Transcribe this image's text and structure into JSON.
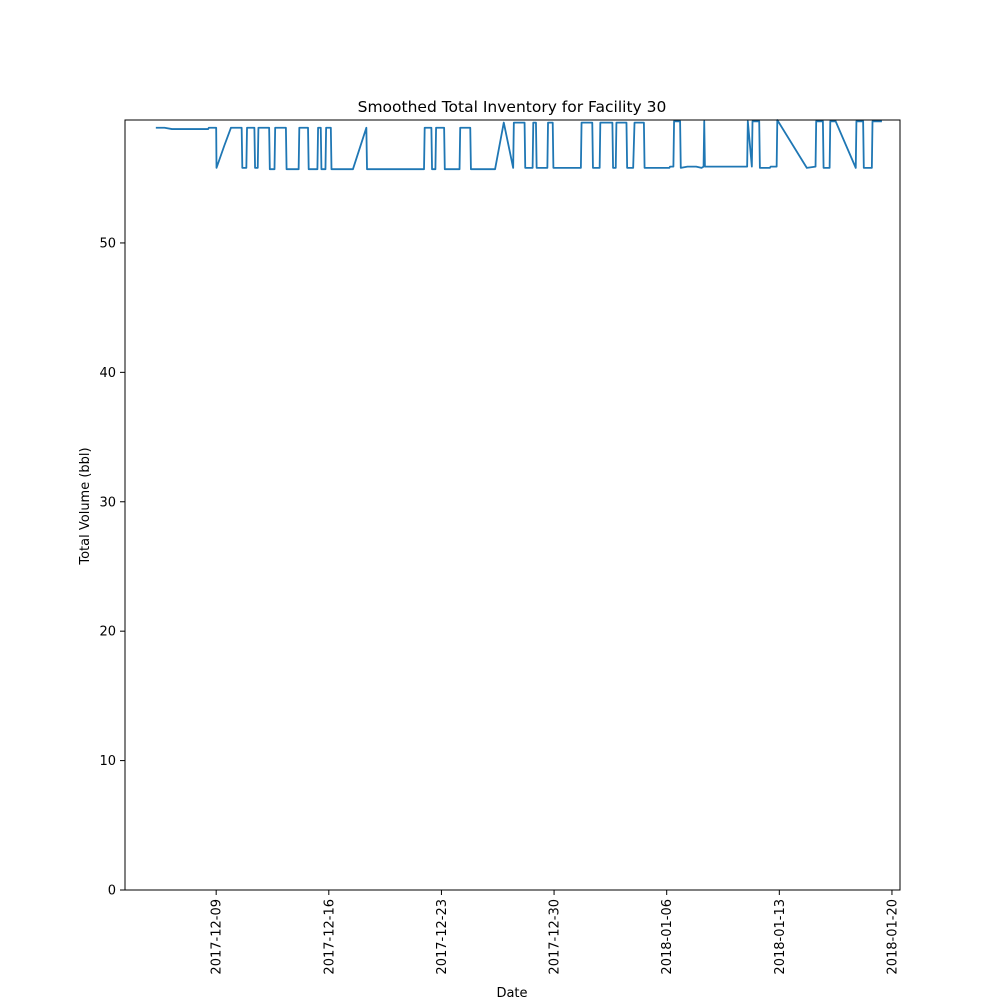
{
  "chart_data": {
    "type": "line",
    "title": "Smoothed Total Inventory for Facility 30",
    "xlabel": "Date",
    "ylabel": "Total Volume (bbl)",
    "x_axis": "date",
    "xlim": [
      "2017-12-03T08:00",
      "2018-01-20T12:00"
    ],
    "ylim": [
      0,
      59.5
    ],
    "x_ticks": [
      "2017-12-09",
      "2017-12-16",
      "2017-12-23",
      "2017-12-30",
      "2018-01-06",
      "2018-01-13",
      "2018-01-20"
    ],
    "y_ticks": [
      0,
      10,
      20,
      30,
      40,
      50
    ],
    "grid": false,
    "line_color": "#1f77b4",
    "series": [
      {
        "x": [
          "2017-12-05T06:00",
          "2017-12-05T19:00",
          "2017-12-06T06:00",
          "2017-12-08T12:00",
          "2017-12-08T13:00",
          "2017-12-09T00:00",
          "2017-12-09T00:30",
          "2017-12-09T12:00",
          "2017-12-09T22:00",
          "2017-12-10T14:00",
          "2017-12-10T15:00",
          "2017-12-10T21:00",
          "2017-12-10T22:00",
          "2017-12-11T09:00",
          "2017-12-11T10:00",
          "2017-12-11T14:00",
          "2017-12-11T15:00",
          "2017-12-12T07:00",
          "2017-12-12T08:00",
          "2017-12-12T15:00",
          "2017-12-12T16:00",
          "2017-12-13T08:00",
          "2017-12-13T09:00",
          "2017-12-14T03:00",
          "2017-12-14T04:00",
          "2017-12-14T17:00",
          "2017-12-14T18:00",
          "2017-12-15T07:00",
          "2017-12-15T08:00",
          "2017-12-15T12:00",
          "2017-12-15T13:00",
          "2017-12-15T19:00",
          "2017-12-15T20:00",
          "2017-12-16T03:00",
          "2017-12-16T04:00",
          "2017-12-17T12:00",
          "2017-12-18T08:00",
          "2017-12-18T09:00",
          "2017-12-21T22:00",
          "2017-12-21T23:00",
          "2017-12-22T09:00",
          "2017-12-22T10:00",
          "2017-12-22T15:00",
          "2017-12-22T16:00",
          "2017-12-23T04:00",
          "2017-12-23T05:00",
          "2017-12-24T03:00",
          "2017-12-24T04:00",
          "2017-12-24T19:00",
          "2017-12-24T20:00",
          "2017-12-26T08:00",
          "2017-12-26T21:00",
          "2017-12-27T11:00",
          "2017-12-27T12:00",
          "2017-12-28T04:00",
          "2017-12-28T05:00",
          "2017-12-28T16:00",
          "2017-12-28T17:00",
          "2017-12-28T21:00",
          "2017-12-28T22:00",
          "2017-12-29T14:00",
          "2017-12-29T15:00",
          "2017-12-29T22:00",
          "2017-12-29T23:00",
          "2017-12-31T16:00",
          "2017-12-31T17:00",
          "2018-01-01T09:00",
          "2018-01-01T10:00",
          "2018-01-01T20:00",
          "2018-01-01T21:00",
          "2018-01-02T15:00",
          "2018-01-02T16:00",
          "2018-01-02T20:00",
          "2018-01-02T21:00",
          "2018-01-03T12:00",
          "2018-01-03T13:00",
          "2018-01-03T22:00",
          "2018-01-04T00:00",
          "2018-01-04T14:00",
          "2018-01-04T15:00",
          "2018-01-06T04:00",
          "2018-01-06T05:00",
          "2018-01-06T10:00",
          "2018-01-06T11:00",
          "2018-01-06T20:00",
          "2018-01-06T21:00",
          "2018-01-07T07:00",
          "2018-01-07T20:00",
          "2018-01-08T04:00",
          "2018-01-08T07:00",
          "2018-01-08T08:00",
          "2018-01-08T09:00",
          "2018-01-11T00:00",
          "2018-01-11T01:00",
          "2018-01-11T07:00",
          "2018-01-11T08:00",
          "2018-01-11T18:00",
          "2018-01-11T19:00",
          "2018-01-12T10:00",
          "2018-01-12T11:00",
          "2018-01-12T20:00",
          "2018-01-12T21:00",
          "2018-01-14T17:00",
          "2018-01-15T06:00",
          "2018-01-15T07:00",
          "2018-01-15T17:00",
          "2018-01-15T18:00",
          "2018-01-16T03:00",
          "2018-01-16T04:00",
          "2018-01-16T12:00",
          "2018-01-17T18:00",
          "2018-01-17T19:00",
          "2018-01-18T05:00",
          "2018-01-18T06:00",
          "2018-01-18T18:00",
          "2018-01-18T19:00",
          "2018-01-19T09:00"
        ],
        "y": [
          58.9,
          58.9,
          58.8,
          58.8,
          58.9,
          58.9,
          55.8,
          57.5,
          58.9,
          58.9,
          55.8,
          55.8,
          58.9,
          58.9,
          55.8,
          55.8,
          58.9,
          58.9,
          55.7,
          55.7,
          58.9,
          58.9,
          55.7,
          55.7,
          58.9,
          58.9,
          55.7,
          55.7,
          58.9,
          58.9,
          55.7,
          55.7,
          58.9,
          58.9,
          55.7,
          55.7,
          58.9,
          55.7,
          55.7,
          58.9,
          58.9,
          55.7,
          55.7,
          58.9,
          58.9,
          55.7,
          55.7,
          58.9,
          58.9,
          55.7,
          55.7,
          59.3,
          55.8,
          59.3,
          59.3,
          55.8,
          55.8,
          59.3,
          59.3,
          55.8,
          55.8,
          59.3,
          59.3,
          55.8,
          55.8,
          59.3,
          59.3,
          55.8,
          55.8,
          59.3,
          59.3,
          55.8,
          55.8,
          59.3,
          59.3,
          55.8,
          55.8,
          59.3,
          59.3,
          55.8,
          55.8,
          55.9,
          55.9,
          59.4,
          59.4,
          55.8,
          55.9,
          55.9,
          55.8,
          55.9,
          59.4,
          55.9,
          55.9,
          59.4,
          55.9,
          59.4,
          59.4,
          55.8,
          55.8,
          55.9,
          55.9,
          59.5,
          55.8,
          55.9,
          59.4,
          59.4,
          55.8,
          55.8,
          59.4,
          59.4,
          55.8,
          59.4,
          59.4,
          55.8,
          55.8,
          59.4,
          59.4
        ]
      }
    ]
  }
}
